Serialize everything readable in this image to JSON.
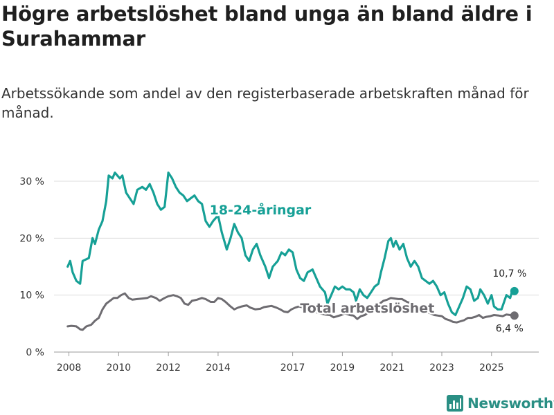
{
  "title": "Högre arbetslöshet bland unga än bland äldre i Surahammar",
  "subtitle": "Arbetssökande som andel av den registerbaserade arbetskraften månad för månad.",
  "brand": {
    "name": "Newsworthy",
    "color": "#2a8f84"
  },
  "chart_data": {
    "type": "line",
    "ylim": [
      0,
      30
    ],
    "xlim": [
      2007.4,
      2026.9
    ],
    "y_ticks": [
      {
        "v": 0,
        "label": "0 %"
      },
      {
        "v": 10,
        "label": "10 %"
      },
      {
        "v": 20,
        "label": "20 %"
      },
      {
        "v": 30,
        "label": "30 %"
      }
    ],
    "x_ticks": [
      {
        "v": 2008,
        "label": "2008"
      },
      {
        "v": 2010,
        "label": "2010"
      },
      {
        "v": 2012,
        "label": "2012"
      },
      {
        "v": 2014,
        "label": "2014"
      },
      {
        "v": 2017,
        "label": "2017"
      },
      {
        "v": 2019,
        "label": "2019"
      },
      {
        "v": 2021,
        "label": "2021"
      },
      {
        "v": 2023,
        "label": "2023"
      },
      {
        "v": 2025,
        "label": "2025"
      }
    ],
    "grid": true,
    "series": [
      {
        "name": "18-24-åringar",
        "color": "#16a096",
        "end_label": "10,7 %",
        "points": [
          [
            2007.95,
            15.0
          ],
          [
            2008.05,
            16.0
          ],
          [
            2008.15,
            14.0
          ],
          [
            2008.3,
            12.5
          ],
          [
            2008.45,
            12.0
          ],
          [
            2008.55,
            16.0
          ],
          [
            2008.8,
            16.5
          ],
          [
            2008.95,
            20.0
          ],
          [
            2009.05,
            19.0
          ],
          [
            2009.2,
            21.5
          ],
          [
            2009.35,
            23.0
          ],
          [
            2009.5,
            26.5
          ],
          [
            2009.6,
            31.0
          ],
          [
            2009.75,
            30.5
          ],
          [
            2009.85,
            31.5
          ],
          [
            2009.95,
            31.0
          ],
          [
            2010.05,
            30.5
          ],
          [
            2010.15,
            31.0
          ],
          [
            2010.3,
            28.0
          ],
          [
            2010.45,
            27.0
          ],
          [
            2010.6,
            26.0
          ],
          [
            2010.75,
            28.5
          ],
          [
            2010.95,
            29.0
          ],
          [
            2011.1,
            28.5
          ],
          [
            2011.25,
            29.5
          ],
          [
            2011.4,
            28.0
          ],
          [
            2011.55,
            26.0
          ],
          [
            2011.7,
            25.0
          ],
          [
            2011.85,
            25.5
          ],
          [
            2012.0,
            31.5
          ],
          [
            2012.15,
            30.5
          ],
          [
            2012.3,
            29.0
          ],
          [
            2012.45,
            28.0
          ],
          [
            2012.6,
            27.5
          ],
          [
            2012.75,
            26.5
          ],
          [
            2012.9,
            27.0
          ],
          [
            2013.05,
            27.5
          ],
          [
            2013.2,
            26.5
          ],
          [
            2013.35,
            26.0
          ],
          [
            2013.5,
            23.0
          ],
          [
            2013.65,
            22.0
          ],
          [
            2013.8,
            23.0
          ],
          [
            2014.0,
            24.0
          ],
          [
            2014.15,
            21.0
          ],
          [
            2014.35,
            18.0
          ],
          [
            2014.5,
            20.0
          ],
          [
            2014.65,
            22.5
          ],
          [
            2014.8,
            21.0
          ],
          [
            2014.95,
            20.0
          ],
          [
            2015.1,
            17.0
          ],
          [
            2015.25,
            16.0
          ],
          [
            2015.4,
            18.0
          ],
          [
            2015.55,
            19.0
          ],
          [
            2015.7,
            17.0
          ],
          [
            2015.9,
            15.0
          ],
          [
            2016.05,
            13.0
          ],
          [
            2016.2,
            15.0
          ],
          [
            2016.4,
            16.0
          ],
          [
            2016.55,
            17.5
          ],
          [
            2016.7,
            17.0
          ],
          [
            2016.85,
            18.0
          ],
          [
            2017.0,
            17.5
          ],
          [
            2017.15,
            14.5
          ],
          [
            2017.3,
            13.0
          ],
          [
            2017.45,
            12.5
          ],
          [
            2017.6,
            14.0
          ],
          [
            2017.8,
            14.5
          ],
          [
            2017.95,
            13.0
          ],
          [
            2018.1,
            11.5
          ],
          [
            2018.3,
            10.5
          ],
          [
            2018.4,
            8.5
          ],
          [
            2018.55,
            10.0
          ],
          [
            2018.7,
            11.5
          ],
          [
            2018.85,
            11.0
          ],
          [
            2019.0,
            11.5
          ],
          [
            2019.15,
            11.0
          ],
          [
            2019.3,
            11.0
          ],
          [
            2019.45,
            10.5
          ],
          [
            2019.55,
            9.0
          ],
          [
            2019.7,
            11.0
          ],
          [
            2019.85,
            10.0
          ],
          [
            2020.0,
            9.5
          ],
          [
            2020.15,
            10.5
          ],
          [
            2020.3,
            11.5
          ],
          [
            2020.45,
            12.0
          ],
          [
            2020.55,
            14.0
          ],
          [
            2020.7,
            16.5
          ],
          [
            2020.85,
            19.5
          ],
          [
            2020.95,
            20.0
          ],
          [
            2021.05,
            18.5
          ],
          [
            2021.15,
            19.5
          ],
          [
            2021.3,
            18.0
          ],
          [
            2021.45,
            19.0
          ],
          [
            2021.6,
            16.5
          ],
          [
            2021.75,
            15.0
          ],
          [
            2021.9,
            16.0
          ],
          [
            2022.05,
            15.0
          ],
          [
            2022.2,
            13.0
          ],
          [
            2022.35,
            12.5
          ],
          [
            2022.5,
            12.0
          ],
          [
            2022.65,
            12.5
          ],
          [
            2022.8,
            11.5
          ],
          [
            2022.95,
            10.0
          ],
          [
            2023.1,
            10.5
          ],
          [
            2023.25,
            8.5
          ],
          [
            2023.4,
            7.0
          ],
          [
            2023.55,
            6.5
          ],
          [
            2023.7,
            8.0
          ],
          [
            2023.85,
            9.5
          ],
          [
            2024.0,
            11.5
          ],
          [
            2024.15,
            11.0
          ],
          [
            2024.3,
            9.0
          ],
          [
            2024.45,
            9.5
          ],
          [
            2024.55,
            11.0
          ],
          [
            2024.7,
            10.0
          ],
          [
            2024.85,
            8.5
          ],
          [
            2025.0,
            10.0
          ],
          [
            2025.1,
            8.0
          ],
          [
            2025.25,
            7.5
          ],
          [
            2025.4,
            7.5
          ],
          [
            2025.6,
            10.0
          ],
          [
            2025.75,
            9.5
          ],
          [
            2025.85,
            11.0
          ],
          [
            2025.92,
            10.7
          ]
        ]
      },
      {
        "name": "Total arbetslöshet",
        "color": "#6e6c71",
        "end_label": "6,4 %",
        "points": [
          [
            2007.95,
            4.5
          ],
          [
            2008.1,
            4.6
          ],
          [
            2008.3,
            4.5
          ],
          [
            2008.45,
            4.0
          ],
          [
            2008.55,
            3.9
          ],
          [
            2008.7,
            4.5
          ],
          [
            2008.9,
            4.8
          ],
          [
            2009.05,
            5.5
          ],
          [
            2009.2,
            6.0
          ],
          [
            2009.35,
            7.5
          ],
          [
            2009.5,
            8.5
          ],
          [
            2009.65,
            9.0
          ],
          [
            2009.8,
            9.5
          ],
          [
            2009.95,
            9.5
          ],
          [
            2010.1,
            10.0
          ],
          [
            2010.25,
            10.3
          ],
          [
            2010.4,
            9.5
          ],
          [
            2010.55,
            9.2
          ],
          [
            2010.75,
            9.3
          ],
          [
            2010.95,
            9.4
          ],
          [
            2011.15,
            9.5
          ],
          [
            2011.3,
            9.8
          ],
          [
            2011.5,
            9.5
          ],
          [
            2011.65,
            9.0
          ],
          [
            2011.85,
            9.5
          ],
          [
            2012.0,
            9.8
          ],
          [
            2012.2,
            10.0
          ],
          [
            2012.35,
            9.8
          ],
          [
            2012.5,
            9.5
          ],
          [
            2012.65,
            8.5
          ],
          [
            2012.8,
            8.3
          ],
          [
            2012.95,
            9.0
          ],
          [
            2013.15,
            9.2
          ],
          [
            2013.35,
            9.5
          ],
          [
            2013.5,
            9.3
          ],
          [
            2013.7,
            8.8
          ],
          [
            2013.85,
            8.8
          ],
          [
            2014.0,
            9.5
          ],
          [
            2014.15,
            9.3
          ],
          [
            2014.3,
            8.8
          ],
          [
            2014.5,
            8.0
          ],
          [
            2014.65,
            7.5
          ],
          [
            2014.8,
            7.8
          ],
          [
            2014.95,
            8.0
          ],
          [
            2015.15,
            8.2
          ],
          [
            2015.3,
            7.8
          ],
          [
            2015.5,
            7.5
          ],
          [
            2015.7,
            7.6
          ],
          [
            2015.85,
            7.9
          ],
          [
            2016.0,
            8.0
          ],
          [
            2016.15,
            8.1
          ],
          [
            2016.35,
            7.8
          ],
          [
            2016.5,
            7.5
          ],
          [
            2016.65,
            7.1
          ],
          [
            2016.8,
            7.0
          ],
          [
            2016.95,
            7.5
          ],
          [
            2017.1,
            7.8
          ],
          [
            2017.25,
            8.0
          ],
          [
            2017.45,
            7.8
          ],
          [
            2017.6,
            7.5
          ],
          [
            2017.8,
            7.0
          ],
          [
            2017.95,
            7.0
          ],
          [
            2018.1,
            6.8
          ],
          [
            2018.3,
            6.6
          ],
          [
            2018.5,
            6.5
          ],
          [
            2018.65,
            6.1
          ],
          [
            2018.8,
            6.3
          ],
          [
            2018.95,
            6.5
          ],
          [
            2019.1,
            6.8
          ],
          [
            2019.3,
            6.5
          ],
          [
            2019.45,
            6.4
          ],
          [
            2019.6,
            5.8
          ],
          [
            2019.75,
            6.3
          ],
          [
            2019.9,
            6.5
          ],
          [
            2020.05,
            7.0
          ],
          [
            2020.2,
            7.5
          ],
          [
            2020.35,
            8.0
          ],
          [
            2020.5,
            8.5
          ],
          [
            2020.65,
            9.0
          ],
          [
            2020.8,
            9.2
          ],
          [
            2020.95,
            9.5
          ],
          [
            2021.1,
            9.4
          ],
          [
            2021.25,
            9.3
          ],
          [
            2021.4,
            9.3
          ],
          [
            2021.6,
            8.8
          ],
          [
            2021.8,
            8.5
          ],
          [
            2021.95,
            8.3
          ],
          [
            2022.1,
            7.8
          ],
          [
            2022.25,
            7.3
          ],
          [
            2022.4,
            7.0
          ],
          [
            2022.55,
            6.8
          ],
          [
            2022.7,
            6.5
          ],
          [
            2022.85,
            6.4
          ],
          [
            2023.0,
            6.3
          ],
          [
            2023.15,
            5.8
          ],
          [
            2023.3,
            5.6
          ],
          [
            2023.45,
            5.3
          ],
          [
            2023.6,
            5.2
          ],
          [
            2023.75,
            5.4
          ],
          [
            2023.9,
            5.6
          ],
          [
            2024.05,
            6.0
          ],
          [
            2024.2,
            6.0
          ],
          [
            2024.35,
            6.2
          ],
          [
            2024.5,
            6.5
          ],
          [
            2024.65,
            6.0
          ],
          [
            2024.8,
            6.2
          ],
          [
            2024.95,
            6.3
          ],
          [
            2025.1,
            6.5
          ],
          [
            2025.3,
            6.4
          ],
          [
            2025.45,
            6.3
          ],
          [
            2025.6,
            6.6
          ],
          [
            2025.75,
            6.5
          ],
          [
            2025.92,
            6.4
          ]
        ]
      }
    ],
    "annotations": [
      {
        "text": "18-24-åringar",
        "x": 2015.7,
        "y": 24.2,
        "series": 0
      },
      {
        "text": "Total arbetslöshet",
        "x": 2020.0,
        "y": 6.9,
        "series": 1
      }
    ]
  }
}
